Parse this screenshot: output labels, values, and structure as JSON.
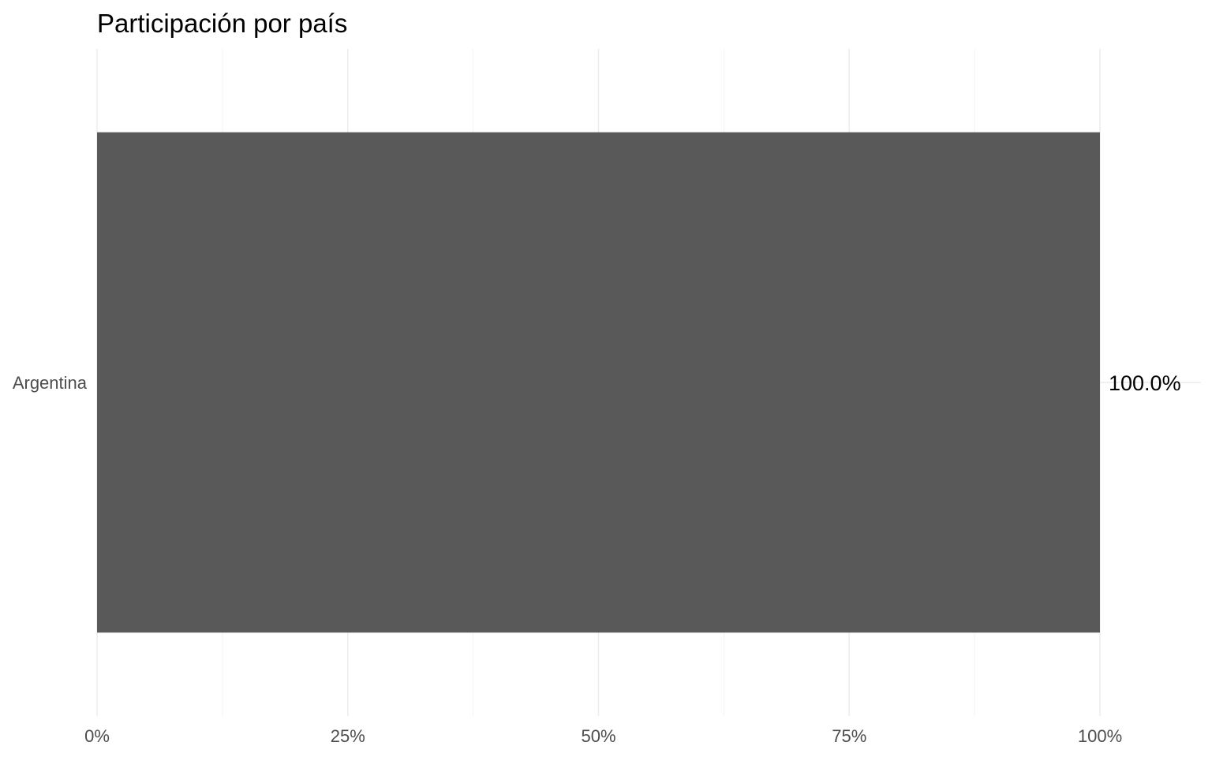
{
  "chart_data": {
    "type": "bar",
    "orientation": "horizontal",
    "title": "Participación por país",
    "xlabel": "",
    "ylabel": "",
    "categories": [
      "Argentina"
    ],
    "values": [
      100.0
    ],
    "data_labels": [
      "100.0%"
    ],
    "xlim": [
      0,
      100
    ],
    "x_ticks": [
      0,
      25,
      50,
      75,
      100
    ],
    "x_tick_labels": [
      "0%",
      "25%",
      "50%",
      "75%",
      "100%"
    ],
    "grid": true,
    "legend": "none",
    "bar_color": "#595959"
  }
}
